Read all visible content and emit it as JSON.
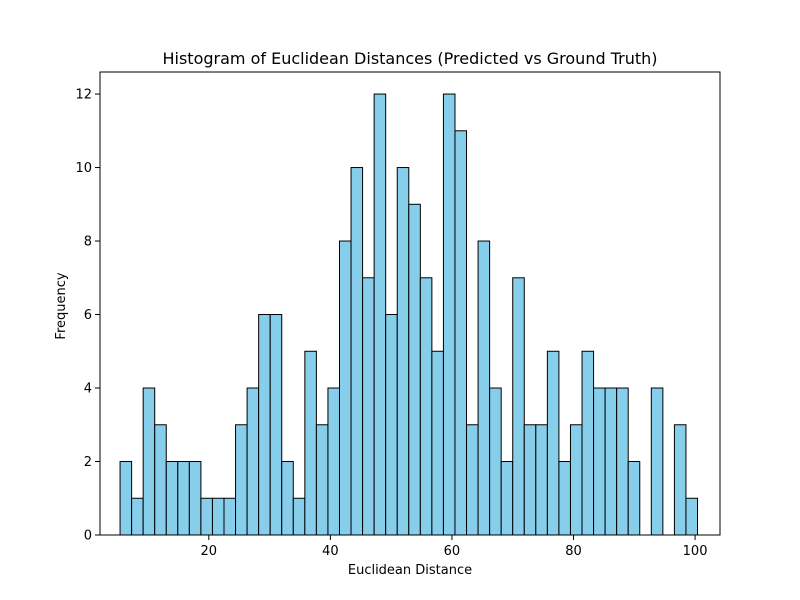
{
  "chart_data": {
    "type": "bar",
    "title": "Histogram of Euclidean Distances (Predicted vs Ground Truth)",
    "xlabel": "Euclidean Distance",
    "ylabel": "Frequency",
    "xlim": [
      2.1,
      104.1
    ],
    "ylim": [
      0,
      12.6
    ],
    "x_ticks": [
      20,
      40,
      60,
      80,
      100
    ],
    "y_ticks": [
      0,
      2,
      4,
      6,
      8,
      10,
      12
    ],
    "bin_start": 5.4,
    "bin_width": 1.9,
    "values": [
      2,
      1,
      4,
      3,
      2,
      2,
      2,
      1,
      1,
      1,
      3,
      4,
      6,
      6,
      2,
      1,
      5,
      3,
      4,
      8,
      10,
      7,
      12,
      6,
      10,
      9,
      7,
      5,
      12,
      11,
      3,
      8,
      4,
      2,
      7,
      3,
      3,
      5,
      2,
      3,
      5,
      4,
      4,
      4,
      2,
      0,
      4,
      0,
      3,
      1
    ],
    "grid": false,
    "colors": {
      "bar_fill": "#87CEEB",
      "bar_edge": "#000000"
    }
  }
}
